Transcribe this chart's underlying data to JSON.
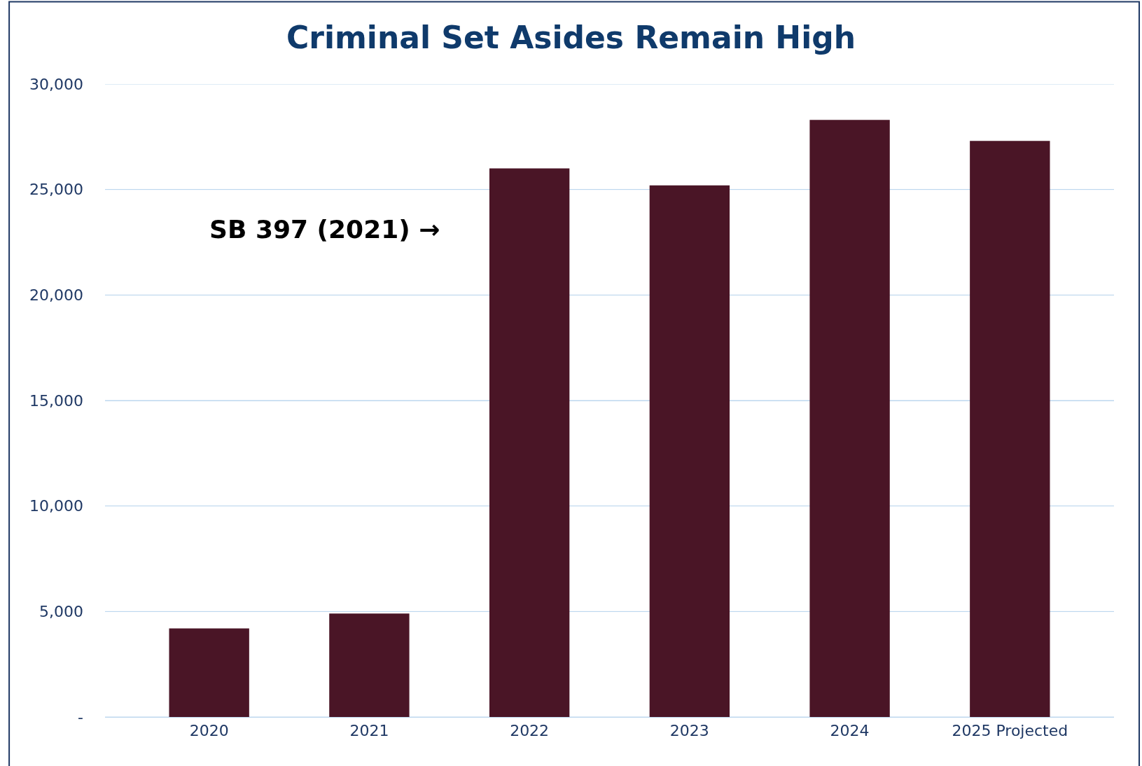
{
  "chart_data": {
    "type": "bar",
    "title": "Criminal Set Asides Remain High",
    "categories": [
      "2020",
      "2021",
      "2022",
      "2023",
      "2024",
      "2025 Projected"
    ],
    "values": [
      4200,
      4900,
      26000,
      25200,
      28300,
      27300
    ],
    "color": "#4a1526",
    "ylim": [
      0,
      30000
    ],
    "yticks": [
      {
        "value": 0,
        "label": "-"
      },
      {
        "value": 5000,
        "label": "5,000"
      },
      {
        "value": 10000,
        "label": "10,000"
      },
      {
        "value": 15000,
        "label": "15,000"
      },
      {
        "value": 20000,
        "label": "20,000"
      },
      {
        "value": 25000,
        "label": "25,000"
      },
      {
        "value": 30000,
        "label": "30,000"
      }
    ],
    "grid": "y",
    "annotations": [
      "SB 397 (2021) →"
    ]
  }
}
